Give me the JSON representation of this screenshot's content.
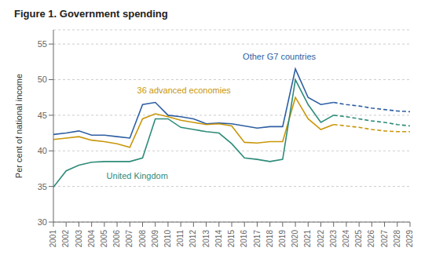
{
  "chart_data": {
    "type": "line",
    "title": "Figure 1. Government spending",
    "y_label": "Per cent of national income",
    "x": [
      2001,
      2002,
      2003,
      2004,
      2005,
      2006,
      2007,
      2008,
      2009,
      2010,
      2011,
      2012,
      2013,
      2014,
      2015,
      2016,
      2017,
      2018,
      2019,
      2020,
      2021,
      2022,
      2023,
      2024,
      2025,
      2026,
      2027,
      2028,
      2029
    ],
    "xlim": [
      2001,
      2029
    ],
    "xticks": [
      2001,
      2002,
      2003,
      2004,
      2005,
      2006,
      2007,
      2008,
      2009,
      2010,
      2011,
      2012,
      2013,
      2014,
      2015,
      2016,
      2017,
      2018,
      2019,
      2020,
      2021,
      2022,
      2023,
      2024,
      2025,
      2026,
      2027,
      2028,
      2029
    ],
    "ylim": [
      30,
      57
    ],
    "yticks": [
      30,
      35,
      40,
      45,
      50,
      55
    ],
    "grid": true,
    "series": [
      {
        "name": "Other G7 countries",
        "color": "#2e5fa3",
        "line_style": "solid",
        "values": [
          42.3,
          42.5,
          42.8,
          42.2,
          42.2,
          42.0,
          41.8,
          46.5,
          46.8,
          45.0,
          44.8,
          44.5,
          43.8,
          43.9,
          43.8,
          43.5,
          43.2,
          43.4,
          43.4,
          51.5,
          47.5,
          46.5,
          46.8,
          null,
          null,
          null,
          null,
          null,
          null
        ]
      },
      {
        "name": "36 advanced economies",
        "color": "#c9960a",
        "line_style": "solid",
        "values": [
          41.6,
          41.8,
          42.0,
          41.5,
          41.3,
          41.0,
          40.5,
          44.5,
          45.2,
          44.8,
          44.3,
          44.0,
          43.7,
          43.8,
          43.5,
          41.2,
          41.1,
          41.3,
          41.3,
          47.5,
          44.5,
          43.0,
          43.7,
          null,
          null,
          null,
          null,
          null,
          null
        ]
      },
      {
        "name": "United Kingdom",
        "color": "#2e8b7a",
        "line_style": "solid",
        "values": [
          34.9,
          37.2,
          38.0,
          38.4,
          38.5,
          38.5,
          38.5,
          39.0,
          44.5,
          44.5,
          43.3,
          43.0,
          42.7,
          42.5,
          41.0,
          39.0,
          38.8,
          38.5,
          38.8,
          50.0,
          46.5,
          44.0,
          45.0,
          null,
          null,
          null,
          null,
          null,
          null
        ]
      },
      {
        "name": "Other G7 countries",
        "color": "#2e5fa3",
        "line_style": "dashed",
        "values": [
          null,
          null,
          null,
          null,
          null,
          null,
          null,
          null,
          null,
          null,
          null,
          null,
          null,
          null,
          null,
          null,
          null,
          null,
          null,
          null,
          null,
          null,
          46.8,
          46.5,
          46.3,
          46.0,
          45.8,
          45.6,
          45.5
        ]
      },
      {
        "name": "36 advanced economies",
        "color": "#c9960a",
        "line_style": "dashed",
        "values": [
          null,
          null,
          null,
          null,
          null,
          null,
          null,
          null,
          null,
          null,
          null,
          null,
          null,
          null,
          null,
          null,
          null,
          null,
          null,
          null,
          null,
          null,
          43.7,
          43.5,
          43.3,
          43.0,
          42.8,
          42.7,
          42.7
        ]
      },
      {
        "name": "United Kingdom",
        "color": "#2e8b7a",
        "line_style": "dashed",
        "values": [
          null,
          null,
          null,
          null,
          null,
          null,
          null,
          null,
          null,
          null,
          null,
          null,
          null,
          null,
          null,
          null,
          null,
          null,
          null,
          null,
          null,
          null,
          45.0,
          44.8,
          44.5,
          44.2,
          44.0,
          43.7,
          43.5
        ]
      }
    ],
    "annotations": [
      {
        "text": "Other G7 countries",
        "x": 2015.5,
        "y": 53.2,
        "color": "#2e5fa3"
      },
      {
        "text": "36 advanced economies",
        "x": 2007.2,
        "y": 48.5,
        "color": "#c9960a"
      },
      {
        "text": "United Kingdom",
        "x": 2004.8,
        "y": 36.5,
        "color": "#2e8b7a"
      }
    ]
  }
}
